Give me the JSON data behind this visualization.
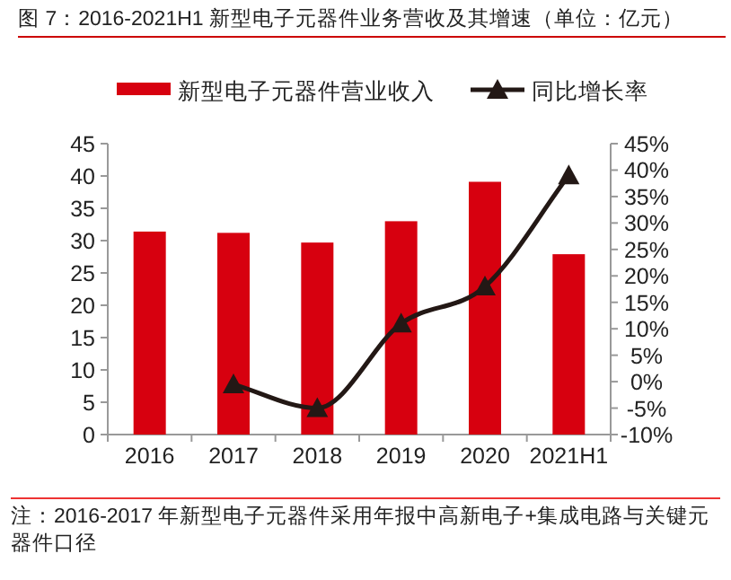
{
  "chart_data": {
    "type": "bar",
    "title": "图 7：2016-2021H1 新型电子元器件业务营收及其增速（单位：亿元）",
    "categories": [
      "2016",
      "2017",
      "2018",
      "2019",
      "2020",
      "2021H1"
    ],
    "series": [
      {
        "name": "新型电子元器件营业收入",
        "color": "#d7000f",
        "values": [
          31.4,
          31.2,
          29.7,
          33.0,
          39.1,
          27.9
        ]
      },
      {
        "name": "同比增长率",
        "type": "line",
        "axis": "y2",
        "color": "#231815",
        "marker": "triangle",
        "values": [
          null,
          -0.5,
          -5,
          11,
          18,
          39
        ]
      }
    ],
    "ylim": [
      0,
      45
    ],
    "yticks": [
      0,
      5,
      10,
      15,
      20,
      25,
      30,
      35,
      40,
      45
    ],
    "y2lim": [
      -10,
      45
    ],
    "y2ticks": [
      {
        "value": -10,
        "label": "-10%"
      },
      {
        "value": -5,
        "label": "-5%"
      },
      {
        "value": 0,
        "label": "0%"
      },
      {
        "value": 5,
        "label": "5%"
      },
      {
        "value": 10,
        "label": "10%"
      },
      {
        "value": 15,
        "label": "15%"
      },
      {
        "value": 20,
        "label": "20%"
      },
      {
        "value": 25,
        "label": "25%"
      },
      {
        "value": 30,
        "label": "30%"
      },
      {
        "value": 35,
        "label": "35%"
      },
      {
        "value": 40,
        "label": "40%"
      },
      {
        "value": 45,
        "label": "45%"
      }
    ],
    "legend": "top",
    "grid": false,
    "annotations": [
      "注：2016-2017 年新型电子元器件采用年报中高新电子+集成电路与关键元器件口径"
    ]
  }
}
